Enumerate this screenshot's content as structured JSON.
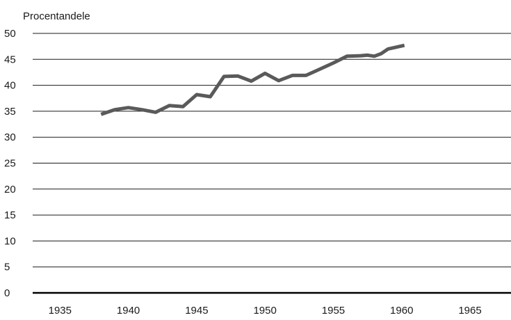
{
  "chart_data": {
    "type": "line",
    "ylabel": "Procentandele",
    "xlim": [
      1933,
      1968
    ],
    "ylim": [
      0,
      50
    ],
    "x_ticks": [
      1935,
      1940,
      1945,
      1950,
      1955,
      1960,
      1965
    ],
    "y_ticks": [
      0,
      5,
      10,
      15,
      20,
      25,
      30,
      35,
      40,
      45,
      50
    ],
    "grid": "horizontal",
    "legend": "none",
    "colors": {
      "line": "#5a5a5a",
      "grid": "#1a1a1a",
      "baseline": "#000000"
    },
    "series": [
      {
        "x": [
          1938,
          1939,
          1940,
          1941,
          1942,
          1943,
          1944,
          1945,
          1946,
          1947,
          1948,
          1949,
          1950,
          1951,
          1952,
          1953,
          1954,
          1955,
          1956,
          1957,
          1957.5,
          1958,
          1958.5,
          1959,
          1960.2
        ],
        "values": [
          34.4,
          35.3,
          35.7,
          35.3,
          34.8,
          36.1,
          35.9,
          38.2,
          37.8,
          41.7,
          41.8,
          40.8,
          42.3,
          40.9,
          41.9,
          41.9,
          43.1,
          44.3,
          45.6,
          45.7,
          45.8,
          45.6,
          46.1,
          47.0,
          47.7
        ]
      }
    ]
  }
}
